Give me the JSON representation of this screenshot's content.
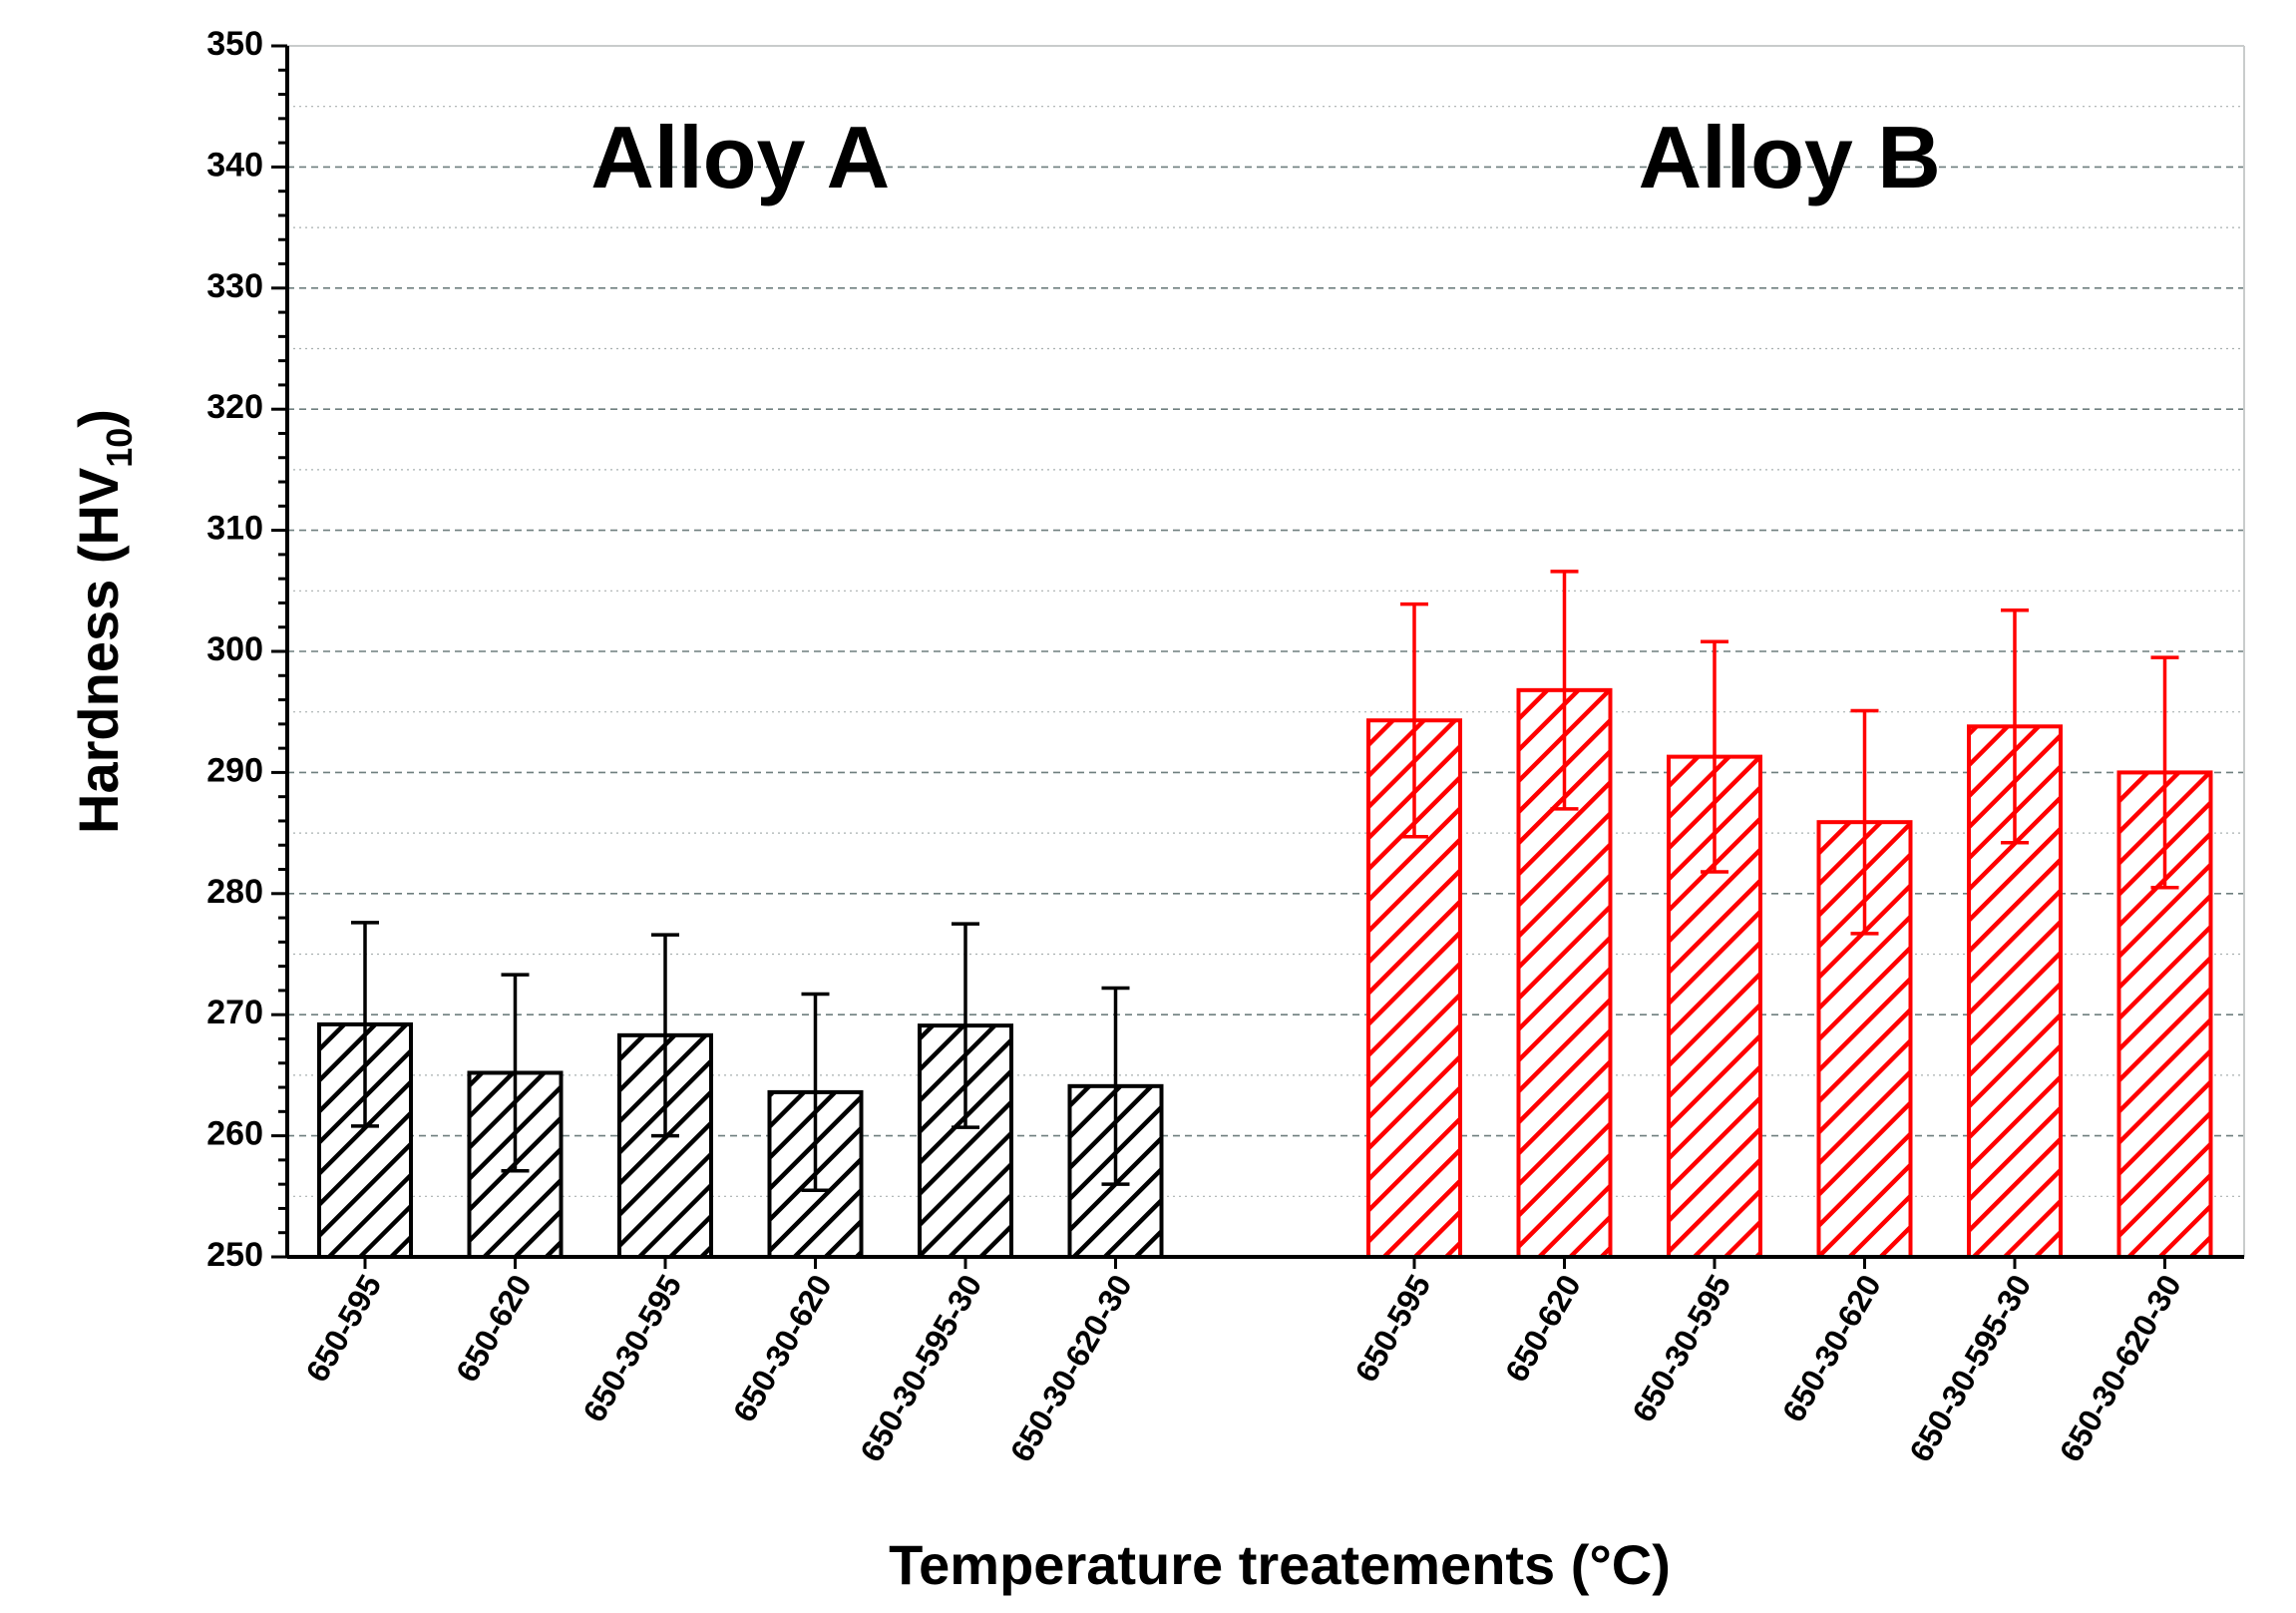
{
  "chart_data": {
    "type": "bar",
    "ylabel": "Hardness (HV",
    "ylabel_sub": "10",
    "ylabel_close": ")",
    "xlabel": "Temperature treatements (°C)",
    "ylim": [
      250,
      350
    ],
    "yticks": [
      250,
      260,
      270,
      280,
      290,
      300,
      310,
      320,
      330,
      340,
      350
    ],
    "grid": true,
    "groups": [
      {
        "name": "Alloy A",
        "color": "#000000",
        "categories": [
          "650-595",
          "650-620",
          "650-30-595",
          "650-30-620",
          "650-30-595-30",
          "650-30-620-30"
        ],
        "values": [
          269.2,
          265.2,
          268.3,
          263.6,
          269.1,
          264.1
        ],
        "errors": [
          8.4,
          8.1,
          8.3,
          8.1,
          8.4,
          8.1
        ]
      },
      {
        "name": "Alloy B",
        "color": "#ff0000",
        "categories": [
          "650-595",
          "650-620",
          "650-30-595",
          "650-30-620",
          "650-30-595-30",
          "650-30-620-30"
        ],
        "values": [
          294.3,
          296.8,
          291.3,
          285.9,
          293.8,
          290.0
        ],
        "errors": [
          9.6,
          9.8,
          9.5,
          9.2,
          9.6,
          9.5
        ]
      }
    ]
  }
}
